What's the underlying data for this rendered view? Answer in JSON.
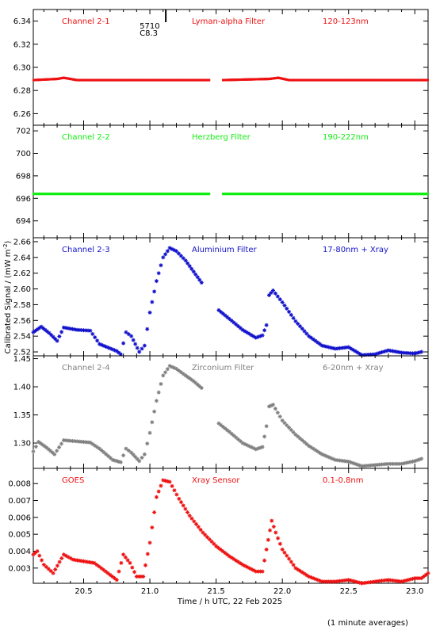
{
  "colors": {
    "ch21": "#ee1111",
    "ch22": "#11ee11",
    "ch23": "#1111cc",
    "ch24": "#808080",
    "goes": "#ee1111",
    "axis": "#000000"
  },
  "xaxis": {
    "label": "Time / h UTC, 22 Feb 2025",
    "xlim": [
      20.12,
      23.1
    ],
    "ticks": [
      "20.5",
      "21.0",
      "21.5",
      "22.0",
      "22.5",
      "23.0"
    ]
  },
  "ylabel": "Calibrated Signal / (mW m",
  "ylabel_sup": "-2",
  "ylabel_close": ")",
  "marker": {
    "line1": "5710",
    "line2": "C8.3",
    "x": 21.12
  },
  "footnote": "(1 minute averages)",
  "chart_data": [
    {
      "type": "scatter",
      "panel": "channel-2-1",
      "labels": [
        "Channel 2-1",
        "Lyman-alpha Filter",
        "120-123nm"
      ],
      "ylim": [
        6.25,
        6.35
      ],
      "yticks": [
        "6.26",
        "6.28",
        "6.30",
        "6.32",
        "6.34"
      ],
      "color_key": "ch21",
      "marker": "dot",
      "gaps": [
        [
          21.45,
          21.55
        ]
      ],
      "points": [
        [
          20.12,
          6.289
        ],
        [
          20.3,
          6.29
        ],
        [
          20.35,
          6.291
        ],
        [
          20.45,
          6.289
        ],
        [
          21.0,
          6.289
        ],
        [
          21.45,
          6.289
        ],
        [
          21.55,
          6.289
        ],
        [
          21.9,
          6.29
        ],
        [
          21.97,
          6.291
        ],
        [
          22.05,
          6.289
        ],
        [
          22.5,
          6.289
        ],
        [
          23.1,
          6.289
        ]
      ]
    },
    {
      "type": "scatter",
      "panel": "channel-2-2",
      "labels": [
        "Channel 2-2",
        "Herzberg Filter",
        "190-222nm"
      ],
      "ylim": [
        692.5,
        702.5
      ],
      "yticks": [
        "694",
        "696",
        "698",
        "700",
        "702"
      ],
      "color_key": "ch22",
      "marker": "dot",
      "gaps": [
        [
          21.45,
          21.55
        ]
      ],
      "points": [
        [
          20.12,
          696.4
        ],
        [
          21.45,
          696.4
        ],
        [
          21.55,
          696.4
        ],
        [
          23.1,
          696.4
        ]
      ]
    },
    {
      "type": "scatter",
      "panel": "channel-2-3",
      "labels": [
        "Channel 2-3",
        "Aluminium Filter",
        "17-80nm + Xray"
      ],
      "ylim": [
        2.515,
        2.665
      ],
      "yticks": [
        "2.52",
        "2.54",
        "2.56",
        "2.58",
        "2.60",
        "2.62",
        "2.64",
        "2.66"
      ],
      "color_key": "ch23",
      "marker": "star",
      "gaps": [
        [
          21.4,
          21.52
        ]
      ],
      "points": [
        [
          20.12,
          2.545
        ],
        [
          20.18,
          2.552
        ],
        [
          20.24,
          2.544
        ],
        [
          20.3,
          2.534
        ],
        [
          20.35,
          2.551
        ],
        [
          20.45,
          2.548
        ],
        [
          20.55,
          2.547
        ],
        [
          20.62,
          2.53
        ],
        [
          20.75,
          2.521
        ],
        [
          20.78,
          2.517
        ],
        [
          20.82,
          2.545
        ],
        [
          20.86,
          2.54
        ],
        [
          20.92,
          2.52
        ],
        [
          20.96,
          2.528
        ],
        [
          21.0,
          2.57
        ],
        [
          21.05,
          2.61
        ],
        [
          21.1,
          2.64
        ],
        [
          21.15,
          2.652
        ],
        [
          21.2,
          2.648
        ],
        [
          21.27,
          2.636
        ],
        [
          21.33,
          2.622
        ],
        [
          21.39,
          2.608
        ],
        [
          21.52,
          2.573
        ],
        [
          21.6,
          2.562
        ],
        [
          21.7,
          2.548
        ],
        [
          21.8,
          2.538
        ],
        [
          21.85,
          2.541
        ],
        [
          21.88,
          2.554
        ],
        [
          21.9,
          2.592
        ],
        [
          21.93,
          2.598
        ],
        [
          22.0,
          2.583
        ],
        [
          22.1,
          2.559
        ],
        [
          22.2,
          2.54
        ],
        [
          22.3,
          2.528
        ],
        [
          22.4,
          2.524
        ],
        [
          22.5,
          2.526
        ],
        [
          22.6,
          2.516
        ],
        [
          22.7,
          2.517
        ],
        [
          22.8,
          2.522
        ],
        [
          22.9,
          2.519
        ],
        [
          23.0,
          2.518
        ],
        [
          23.05,
          2.52
        ]
      ]
    },
    {
      "type": "scatter",
      "panel": "channel-2-4",
      "labels": [
        "Channel 2-4",
        "Zirconium Filter",
        "6-20nm + Xray"
      ],
      "ylim": [
        1.255,
        1.455
      ],
      "yticks": [
        "1.30",
        "1.35",
        "1.40",
        "1.45"
      ],
      "color_key": "ch24",
      "marker": "star",
      "gaps": [
        [
          21.4,
          21.52
        ]
      ],
      "points": [
        [
          20.12,
          1.285
        ],
        [
          20.16,
          1.302
        ],
        [
          20.22,
          1.292
        ],
        [
          20.28,
          1.28
        ],
        [
          20.35,
          1.305
        ],
        [
          20.45,
          1.303
        ],
        [
          20.55,
          1.301
        ],
        [
          20.62,
          1.29
        ],
        [
          20.72,
          1.27
        ],
        [
          20.78,
          1.266
        ],
        [
          20.82,
          1.29
        ],
        [
          20.86,
          1.283
        ],
        [
          20.92,
          1.268
        ],
        [
          20.96,
          1.28
        ],
        [
          21.0,
          1.318
        ],
        [
          21.05,
          1.375
        ],
        [
          21.1,
          1.42
        ],
        [
          21.15,
          1.437
        ],
        [
          21.2,
          1.432
        ],
        [
          21.27,
          1.42
        ],
        [
          21.33,
          1.41
        ],
        [
          21.39,
          1.398
        ],
        [
          21.52,
          1.335
        ],
        [
          21.6,
          1.32
        ],
        [
          21.7,
          1.3
        ],
        [
          21.8,
          1.289
        ],
        [
          21.85,
          1.293
        ],
        [
          21.88,
          1.33
        ],
        [
          21.9,
          1.365
        ],
        [
          21.93,
          1.368
        ],
        [
          22.0,
          1.34
        ],
        [
          22.1,
          1.315
        ],
        [
          22.2,
          1.295
        ],
        [
          22.3,
          1.28
        ],
        [
          22.4,
          1.27
        ],
        [
          22.5,
          1.267
        ],
        [
          22.6,
          1.259
        ],
        [
          22.7,
          1.261
        ],
        [
          22.8,
          1.263
        ],
        [
          22.9,
          1.263
        ],
        [
          23.0,
          1.268
        ],
        [
          23.05,
          1.272
        ]
      ]
    },
    {
      "type": "scatter",
      "panel": "goes",
      "labels": [
        "GOES",
        "Xray Sensor",
        "0.1-0.8nm"
      ],
      "ylim": [
        0.0021,
        0.0089
      ],
      "yticks": [
        "0.003",
        "0.004",
        "0.005",
        "0.006",
        "0.007",
        "0.008"
      ],
      "color_key": "goes",
      "marker": "star",
      "gaps": [],
      "points": [
        [
          20.12,
          0.0038
        ],
        [
          20.15,
          0.004
        ],
        [
          20.2,
          0.0032
        ],
        [
          20.27,
          0.0027
        ],
        [
          20.35,
          0.0038
        ],
        [
          20.42,
          0.0035
        ],
        [
          20.5,
          0.0034
        ],
        [
          20.58,
          0.0033
        ],
        [
          20.65,
          0.0029
        ],
        [
          20.75,
          0.0023
        ],
        [
          20.8,
          0.0038
        ],
        [
          20.85,
          0.0033
        ],
        [
          20.9,
          0.0025
        ],
        [
          20.95,
          0.0025
        ],
        [
          21.0,
          0.0045
        ],
        [
          21.05,
          0.0072
        ],
        [
          21.1,
          0.0082
        ],
        [
          21.15,
          0.0081
        ],
        [
          21.22,
          0.0071
        ],
        [
          21.3,
          0.0061
        ],
        [
          21.4,
          0.0051
        ],
        [
          21.5,
          0.0043
        ],
        [
          21.6,
          0.0037
        ],
        [
          21.7,
          0.0032
        ],
        [
          21.8,
          0.0028
        ],
        [
          21.85,
          0.0028
        ],
        [
          21.88,
          0.0041
        ],
        [
          21.92,
          0.0058
        ],
        [
          21.95,
          0.0051
        ],
        [
          22.0,
          0.0041
        ],
        [
          22.1,
          0.003
        ],
        [
          22.2,
          0.0025
        ],
        [
          22.3,
          0.0022
        ],
        [
          22.4,
          0.0022
        ],
        [
          22.5,
          0.0023
        ],
        [
          22.6,
          0.0021
        ],
        [
          22.7,
          0.0022
        ],
        [
          22.8,
          0.0023
        ],
        [
          22.9,
          0.0022
        ],
        [
          23.0,
          0.0024
        ],
        [
          23.05,
          0.0024
        ],
        [
          23.1,
          0.0027
        ]
      ]
    }
  ]
}
